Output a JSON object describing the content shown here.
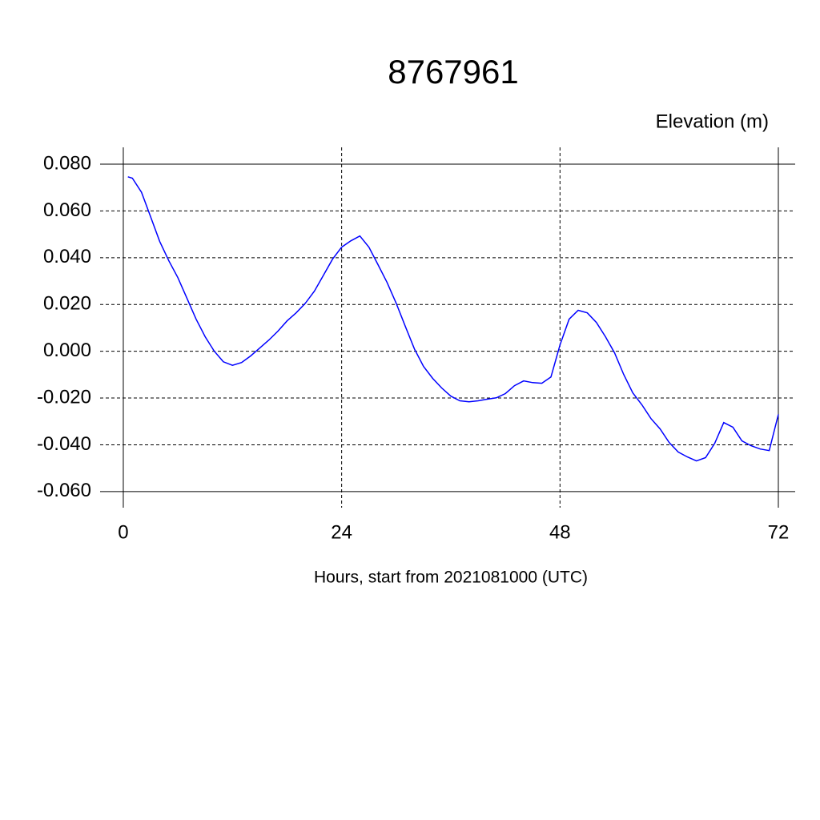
{
  "chart_data": {
    "type": "line",
    "title": "8767961",
    "subtitle": "Elevation (m)",
    "x_label": "Hours, start from 2021081000 (UTC)",
    "x": [
      0.5,
      1,
      2,
      3,
      4,
      5,
      6,
      7,
      8,
      9,
      10,
      11,
      12,
      13,
      14,
      15,
      16,
      17,
      18,
      19,
      20,
      21,
      22,
      23,
      24,
      25,
      26,
      27,
      28,
      29,
      30,
      31,
      32,
      33,
      34,
      35,
      36,
      37,
      38,
      39,
      40,
      41,
      42,
      43,
      44,
      45,
      46,
      47,
      48,
      49,
      50,
      51,
      52,
      53,
      54,
      55,
      56,
      57,
      58,
      59,
      60,
      61,
      62,
      63,
      64,
      65,
      66,
      67,
      68,
      69,
      70,
      71,
      72
    ],
    "series": [
      {
        "name": "Elevation",
        "color": "#0000ff",
        "values": [
          0.0746,
          0.074,
          0.068,
          0.0575,
          0.047,
          0.0387,
          0.0315,
          0.0226,
          0.0137,
          0.0062,
          0.0,
          -0.0045,
          -0.006,
          -0.0048,
          -0.002,
          0.0014,
          0.0048,
          0.0086,
          0.013,
          0.0164,
          0.0205,
          0.0257,
          0.0325,
          0.0394,
          0.0445,
          0.0472,
          0.0493,
          0.0445,
          0.037,
          0.0294,
          0.0205,
          0.0106,
          0.001,
          -0.0065,
          -0.0116,
          -0.0157,
          -0.0192,
          -0.0212,
          -0.0216,
          -0.0212,
          -0.0205,
          -0.0199,
          -0.0181,
          -0.0147,
          -0.0127,
          -0.0134,
          -0.0137,
          -0.011,
          0.0027,
          0.0137,
          0.0175,
          0.0164,
          0.0123,
          0.0062,
          -0.0007,
          -0.0099,
          -0.0178,
          -0.0229,
          -0.0288,
          -0.0332,
          -0.039,
          -0.0431,
          -0.0452,
          -0.0469,
          -0.0455,
          -0.0394,
          -0.0305,
          -0.0325,
          -0.0383,
          -0.0404,
          -0.0418,
          -0.0425,
          -0.027
        ]
      }
    ],
    "xlim": [
      -2.55,
      73.85
    ],
    "ylim": [
      -0.0669,
      0.0872
    ],
    "xticks": [
      0,
      24,
      48,
      72
    ],
    "yticks": [
      {
        "value": 0.08,
        "label": "0.080"
      },
      {
        "value": 0.06,
        "label": "0.060"
      },
      {
        "value": 0.04,
        "label": "0.040"
      },
      {
        "value": 0.02,
        "label": "0.020"
      },
      {
        "value": 0,
        "label": "0.000"
      },
      {
        "value": -0.02,
        "label": "-0.020"
      },
      {
        "value": -0.04,
        "label": "-0.040"
      },
      {
        "value": -0.06,
        "label": "-0.060"
      }
    ],
    "grid": true
  }
}
